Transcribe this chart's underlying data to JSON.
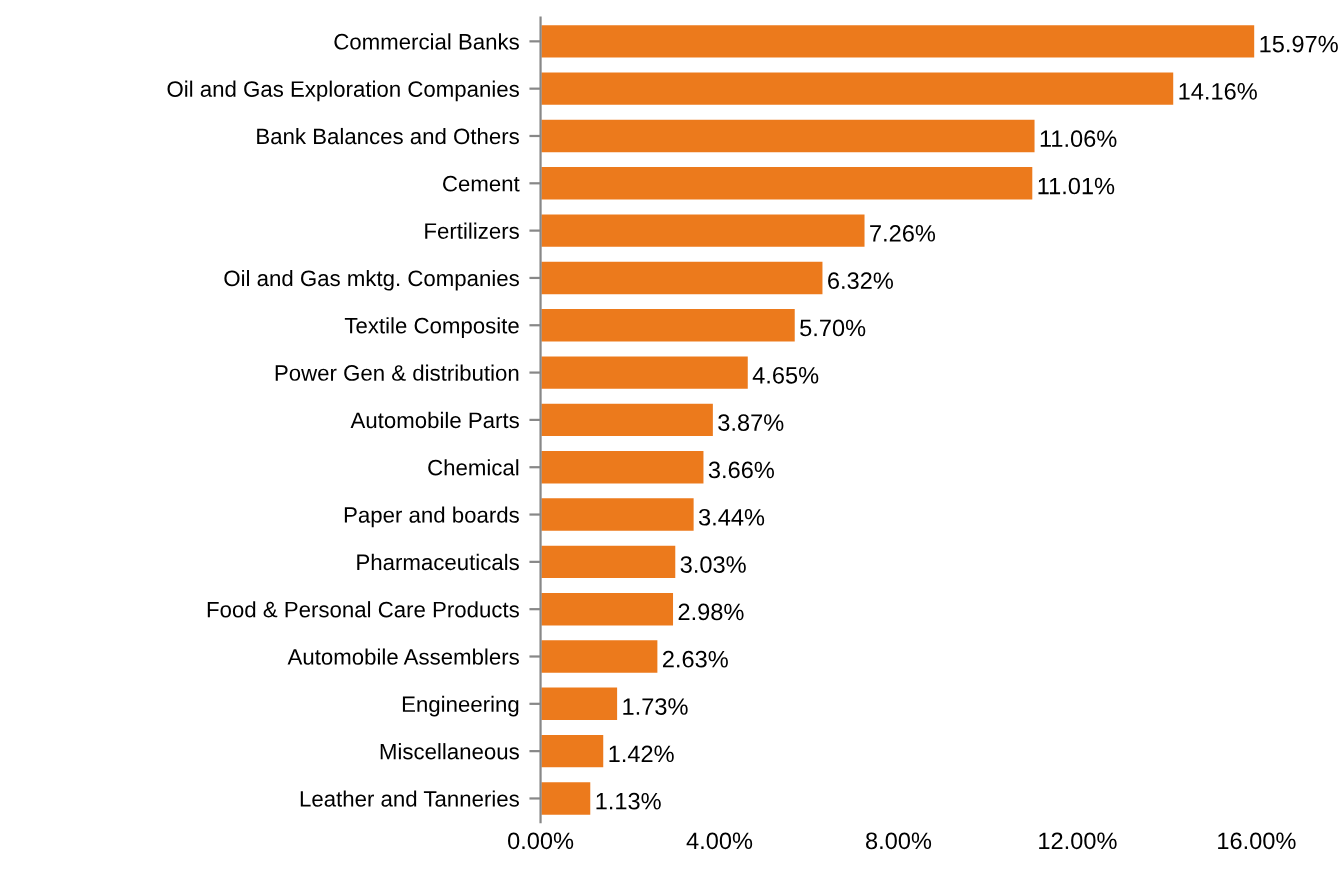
{
  "chart_data": {
    "type": "bar",
    "orientation": "horizontal",
    "categories": [
      "Commercial Banks",
      "Oil and Gas Exploration Companies",
      "Bank Balances and Others",
      "Cement",
      "Fertilizers",
      "Oil and Gas mktg. Companies",
      "Textile Composite",
      "Power Gen & distribution",
      "Automobile Parts",
      "Chemical",
      "Paper and boards",
      "Pharmaceuticals",
      "Food & Personal Care Products",
      "Automobile Assemblers",
      "Engineering",
      "Miscellaneous",
      "Leather and Tanneries"
    ],
    "values": [
      15.97,
      14.16,
      11.06,
      11.01,
      7.26,
      6.32,
      5.7,
      4.65,
      3.87,
      3.66,
      3.44,
      3.03,
      2.98,
      2.63,
      1.73,
      1.42,
      1.13
    ],
    "value_labels": [
      "15.97%",
      "14.16%",
      "11.06%",
      "11.01%",
      "7.26%",
      "6.32%",
      "5.70%",
      "4.65%",
      "3.87%",
      "3.66%",
      "3.44%",
      "3.03%",
      "2.98%",
      "2.63%",
      "1.73%",
      "1.42%",
      "1.13%"
    ],
    "color": "#ec7a1c",
    "xlim": [
      0,
      16
    ],
    "xticks": [
      {
        "value": 0,
        "label": "0.00%"
      },
      {
        "value": 4,
        "label": "4.00%"
      },
      {
        "value": 8,
        "label": "8.00%"
      },
      {
        "value": 12,
        "label": "12.00%"
      },
      {
        "value": 16,
        "label": "16.00%"
      }
    ],
    "grid": false,
    "legend": false
  }
}
